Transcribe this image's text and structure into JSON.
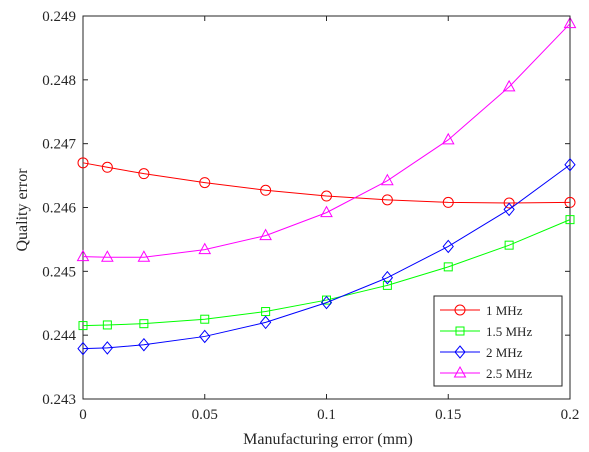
{
  "chart_data": {
    "type": "line",
    "xlabel": "Manufacturing error (mm)",
    "ylabel": "Quality error",
    "xlim": [
      0,
      0.2
    ],
    "ylim": [
      0.243,
      0.249
    ],
    "xticks": [
      0,
      0.05,
      0.1,
      0.15,
      0.2
    ],
    "xtick_labels": [
      "0",
      "0.05",
      "0.1",
      "0.15",
      "0.2"
    ],
    "yticks": [
      0.243,
      0.244,
      0.245,
      0.246,
      0.247,
      0.248,
      0.249
    ],
    "ytick_labels": [
      "0.243",
      "0.244",
      "0.245",
      "0.246",
      "0.247",
      "0.248",
      "0.249"
    ],
    "grid": false,
    "legend_position": "bottom-right",
    "x": [
      0,
      0.01,
      0.025,
      0.05,
      0.075,
      0.1,
      0.125,
      0.15,
      0.175,
      0.2
    ],
    "series": [
      {
        "name": "1 MHz",
        "color": "#ff0000",
        "marker": "circle",
        "values": [
          0.2467,
          0.24663,
          0.24653,
          0.24639,
          0.24627,
          0.24618,
          0.24612,
          0.24608,
          0.24607,
          0.24608
        ]
      },
      {
        "name": "1.5 MHz",
        "color": "#00ff00",
        "marker": "square",
        "values": [
          0.24415,
          0.24416,
          0.24418,
          0.24425,
          0.24437,
          0.24455,
          0.24478,
          0.24507,
          0.24541,
          0.24581
        ]
      },
      {
        "name": "2 MHz",
        "color": "#0000ff",
        "marker": "diamond",
        "values": [
          0.24379,
          0.2438,
          0.24385,
          0.24398,
          0.2442,
          0.24451,
          0.2449,
          0.24539,
          0.24597,
          0.24667
        ]
      },
      {
        "name": "2.5 MHz",
        "color": "#ff00ff",
        "marker": "triangle",
        "values": [
          0.24523,
          0.24522,
          0.24522,
          0.24534,
          0.24556,
          0.24592,
          0.24642,
          0.24706,
          0.24789,
          0.24888
        ]
      }
    ]
  }
}
